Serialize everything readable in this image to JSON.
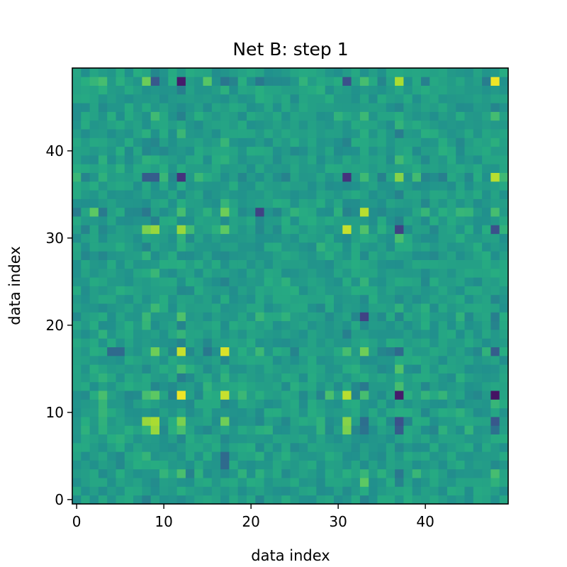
{
  "chart_data": {
    "type": "heatmap",
    "title": "Net B: step 1",
    "xlabel": "data index",
    "ylabel": "data index",
    "n": 50,
    "xlim": [
      -0.5,
      49.5
    ],
    "ylim": [
      -0.5,
      49.5
    ],
    "xticks": [
      0,
      10,
      20,
      30,
      40
    ],
    "yticks": [
      0,
      10,
      20,
      30,
      40
    ],
    "origin": "lower",
    "colormap": "viridis",
    "value_range": [
      0,
      1
    ],
    "base_level": 0.56,
    "row_weights": {
      "3": 0.55,
      "5": -0.3,
      "8": 0.75,
      "9": 0.9,
      "12": 0.95,
      "13": 0.4,
      "15": 0.45,
      "17": 0.85,
      "21": 0.45,
      "25": -0.2,
      "28": 0.35,
      "31": 0.75,
      "33": 0.8,
      "37": 0.9,
      "40": 0.3,
      "44": 0.35,
      "48": 0.9
    },
    "patterns": {
      "12": {
        "8": 0.7,
        "9": 0.75,
        "12": 0.98,
        "17": 0.92,
        "31": 0.9,
        "37": 0.08,
        "48": 0.05
      },
      "17": {
        "4": 0.35,
        "5": 0.35,
        "12": 0.92,
        "17": 0.95,
        "31": 0.7,
        "37": 0.35,
        "48": 0.3
      },
      "37": {
        "8": 0.3,
        "9": 0.3,
        "12": 0.15,
        "17": 0.5,
        "31": 0.15,
        "37": 0.82,
        "48": 0.9
      },
      "48": {
        "3": 0.7,
        "12": 0.08,
        "17": 0.4,
        "31": 0.25,
        "33": 0.7,
        "37": 0.88,
        "48": 0.98
      },
      "31": {
        "8": 0.8,
        "9": 0.85,
        "12": 0.85,
        "17": 0.75,
        "31": 0.92,
        "33": 0.72,
        "37": 0.2,
        "48": 0.25
      },
      "33": {
        "2": 0.75,
        "12": 0.7,
        "17": 0.78,
        "21": 0.2,
        "31": 0.45,
        "33": 0.9,
        "48": 0.7
      },
      "9": {
        "8": 0.85,
        "9": 0.88,
        "12": 0.8,
        "17": 0.78,
        "31": 0.82,
        "37": 0.25,
        "48": 0.28
      }
    }
  }
}
